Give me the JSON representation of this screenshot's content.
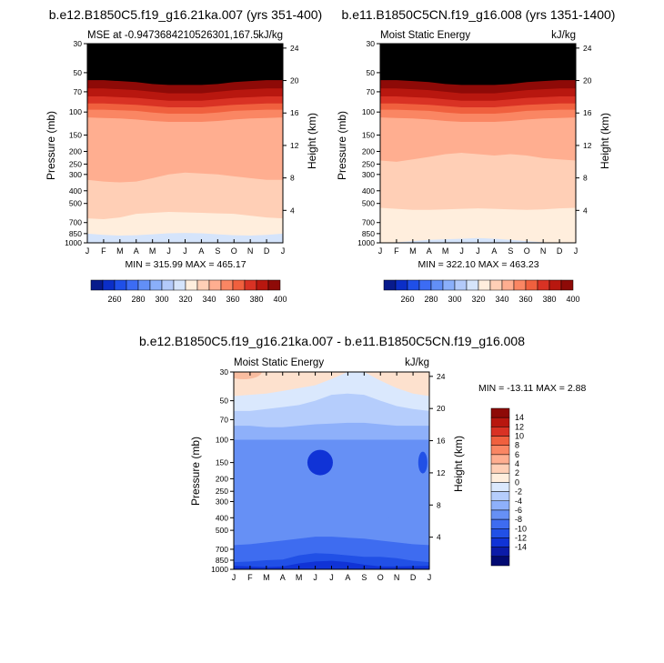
{
  "chart_data": [
    {
      "type": "heatmap",
      "title": "b.e12.B1850C5.f19_g16.21ka.007 (yrs 351-400)",
      "left_label": "MSE at -0.9473684210526301,167.5",
      "right_label": "kJ/kg",
      "ylabel": "Pressure (mb)",
      "y2label": "Height (km)",
      "x_ticks": [
        "J",
        "F",
        "M",
        "A",
        "M",
        "J",
        "J",
        "A",
        "S",
        "O",
        "N",
        "D",
        "J"
      ],
      "y_ticks": [
        "30",
        "50",
        "70",
        "100",
        "150",
        "200",
        "250",
        "300",
        "400",
        "500",
        "700",
        "850",
        "1000"
      ],
      "y2_ticks": [
        "24",
        "20",
        "16",
        "12",
        "8",
        "4"
      ],
      "stats": "MIN = 315.99 MAX = 465.17",
      "levels": [
        330,
        340,
        350,
        360,
        370,
        380,
        390,
        400
      ],
      "bands_pressure": [
        [
          850,
          870,
          880,
          875,
          860,
          845,
          840,
          845,
          860,
          875,
          880,
          870,
          850
        ],
        [
          650,
          660,
          640,
          600,
          590,
          580,
          585,
          590,
          595,
          600,
          620,
          640,
          650
        ],
        [
          330,
          340,
          345,
          340,
          320,
          300,
          290,
          295,
          300,
          310,
          320,
          330,
          330
        ],
        [
          110,
          111,
          112,
          114,
          117,
          119,
          119,
          119,
          117,
          114,
          112,
          111,
          110
        ],
        [
          96,
          96,
          97,
          98,
          101,
          103,
          103,
          103,
          101,
          98,
          97,
          96,
          96
        ],
        [
          86,
          86,
          87,
          88,
          90,
          92,
          92,
          92,
          90,
          88,
          87,
          86,
          86
        ],
        [
          76,
          76,
          77,
          78,
          80,
          82,
          82,
          82,
          80,
          78,
          77,
          76,
          76
        ],
        [
          66,
          66,
          67,
          68,
          70,
          72,
          72,
          72,
          70,
          68,
          67,
          66,
          66
        ],
        [
          57,
          57,
          58,
          59,
          61,
          62,
          62,
          62,
          61,
          59,
          58,
          57,
          57
        ]
      ],
      "colorbar": {
        "labels": [
          "260",
          "280",
          "300",
          "320",
          "340",
          "360",
          "380",
          "400"
        ]
      }
    },
    {
      "type": "heatmap",
      "title": "b.e11.B1850C5CN.f19_g16.008 (yrs 1351-1400)",
      "left_label": "Moist Static Energy",
      "right_label": "kJ/kg",
      "ylabel": "Pressure (mb)",
      "y2label": "Height (km)",
      "x_ticks": [
        "J",
        "F",
        "M",
        "A",
        "M",
        "J",
        "J",
        "A",
        "S",
        "O",
        "N",
        "D",
        "J"
      ],
      "y_ticks": [
        "30",
        "50",
        "70",
        "100",
        "150",
        "200",
        "250",
        "300",
        "400",
        "500",
        "700",
        "850",
        "1000"
      ],
      "y2_ticks": [
        "24",
        "20",
        "16",
        "12",
        "8",
        "4"
      ],
      "stats": "MIN = 322.10 MAX = 463.23",
      "levels": [
        330,
        340,
        350,
        360,
        370,
        380,
        390,
        400
      ],
      "bands_pressure": [
        [
          1000,
          990,
          970,
          950,
          940,
          930,
          920,
          930,
          950,
          970,
          990,
          1000,
          1000
        ],
        [
          540,
          550,
          560,
          560,
          555,
          550,
          545,
          550,
          555,
          560,
          555,
          545,
          540
        ],
        [
          235,
          240,
          230,
          220,
          210,
          205,
          210,
          215,
          210,
          215,
          225,
          230,
          235
        ],
        [
          110,
          111,
          112,
          114,
          117,
          119,
          119,
          119,
          117,
          114,
          112,
          111,
          110
        ],
        [
          96,
          96,
          97,
          98,
          101,
          103,
          103,
          103,
          101,
          98,
          97,
          96,
          96
        ],
        [
          86,
          86,
          87,
          88,
          90,
          92,
          92,
          92,
          90,
          88,
          87,
          86,
          86
        ],
        [
          76,
          76,
          77,
          78,
          80,
          82,
          82,
          82,
          80,
          78,
          77,
          76,
          76
        ],
        [
          66,
          66,
          67,
          68,
          70,
          72,
          72,
          72,
          70,
          68,
          67,
          66,
          66
        ],
        [
          57,
          57,
          58,
          59,
          61,
          62,
          62,
          62,
          61,
          59,
          58,
          57,
          57
        ]
      ],
      "colorbar": {
        "labels": [
          "260",
          "280",
          "300",
          "320",
          "340",
          "360",
          "380",
          "400"
        ]
      }
    },
    {
      "type": "heatmap",
      "title": "b.e12.B1850C5.f19_g16.21ka.007 - b.e11.B1850C5CN.f19_g16.008",
      "left_label": "Moist Static Energy",
      "right_label": "kJ/kg",
      "ylabel": "Pressure (mb)",
      "y2label": "Height (km)",
      "x_ticks": [
        "J",
        "F",
        "M",
        "A",
        "M",
        "J",
        "J",
        "A",
        "S",
        "O",
        "N",
        "D",
        "J"
      ],
      "y_ticks": [
        "30",
        "50",
        "70",
        "100",
        "150",
        "200",
        "250",
        "300",
        "400",
        "500",
        "700",
        "850",
        "1000"
      ],
      "y2_ticks": [
        "24",
        "20",
        "16",
        "12",
        "8",
        "4"
      ],
      "stats": "MIN = -13.11 MAX =   2.88",
      "levels": [
        -14,
        -12,
        -10,
        -8,
        -6,
        -4,
        -2,
        0,
        2
      ],
      "bands_pressure": [
        [
          990,
          995,
          1000,
          1000,
          1000,
          1000,
          1000,
          1000,
          1000,
          1000,
          1000,
          1000,
          990
        ],
        [
          940,
          950,
          960,
          950,
          900,
          870,
          860,
          880,
          920,
          950,
          950,
          945,
          940
        ],
        [
          880,
          870,
          850,
          840,
          780,
          750,
          760,
          780,
          800,
          800,
          820,
          860,
          880
        ],
        [
          650,
          640,
          620,
          600,
          580,
          560,
          560,
          570,
          580,
          600,
          620,
          640,
          650
        ],
        [
          100,
          100,
          100,
          100,
          100,
          100,
          100,
          100,
          100,
          100,
          100,
          100,
          100
        ],
        [
          78,
          78,
          80,
          80,
          78,
          76,
          75,
          74,
          74,
          76,
          78,
          78,
          78
        ],
        [
          60,
          60,
          58,
          56,
          54,
          50,
          45,
          44,
          45,
          50,
          55,
          58,
          60
        ],
        [
          46,
          45,
          44,
          42,
          40,
          38,
          34,
          30,
          30,
          35,
          40,
          44,
          46
        ],
        [
          30,
          30,
          30,
          30,
          30,
          30,
          30,
          30,
          30,
          30,
          30,
          30,
          30
        ]
      ],
      "colorbar": {
        "labels": [
          "14",
          "12",
          "10",
          "8",
          "6",
          "4",
          "2",
          "0",
          "-2",
          "-4",
          "-6",
          "-8",
          "-10",
          "-12",
          "-14"
        ]
      }
    }
  ]
}
